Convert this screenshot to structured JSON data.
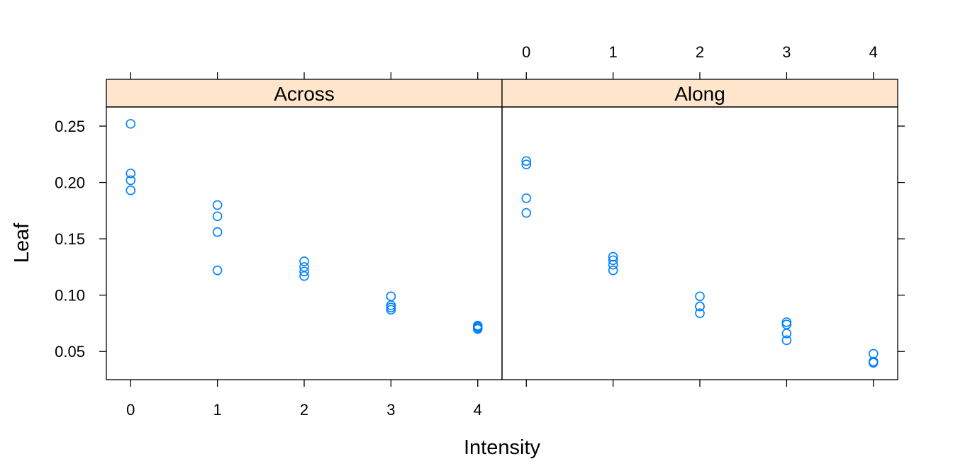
{
  "chart_data": {
    "type": "scatter",
    "xlabel": "Intensity",
    "ylabel": "Leaf",
    "xlim": [
      -0.28,
      4.28
    ],
    "ylim": [
      0.025,
      0.267
    ],
    "x_ticks": [
      0,
      1,
      2,
      3,
      4
    ],
    "y_ticks": [
      0.05,
      0.1,
      0.15,
      0.2,
      0.25
    ],
    "y_tick_labels": [
      "0.05",
      "0.10",
      "0.15",
      "0.20",
      "0.25"
    ],
    "point_color": "#0080ff",
    "strip_color": "#ffe5cc",
    "panels": [
      {
        "name": "Across",
        "x": [
          0,
          0,
          0,
          0,
          1,
          1,
          1,
          1,
          2,
          2,
          2,
          2,
          3,
          3,
          3,
          3,
          4,
          4,
          4,
          4
        ],
        "y": [
          0.252,
          0.208,
          0.202,
          0.193,
          0.18,
          0.17,
          0.156,
          0.122,
          0.13,
          0.125,
          0.121,
          0.117,
          0.099,
          0.091,
          0.089,
          0.087,
          0.073,
          0.072,
          0.071,
          0.07
        ]
      },
      {
        "name": "Along",
        "x": [
          0,
          0,
          0,
          0,
          1,
          1,
          1,
          1,
          2,
          2,
          2,
          2,
          3,
          3,
          3,
          3,
          4,
          4,
          4,
          4
        ],
        "y": [
          0.219,
          0.216,
          0.186,
          0.173,
          0.134,
          0.131,
          0.127,
          0.122,
          0.099,
          0.09,
          0.084,
          0.09,
          0.076,
          0.074,
          0.066,
          0.06,
          0.048,
          0.041,
          0.04,
          0.041
        ]
      }
    ]
  }
}
